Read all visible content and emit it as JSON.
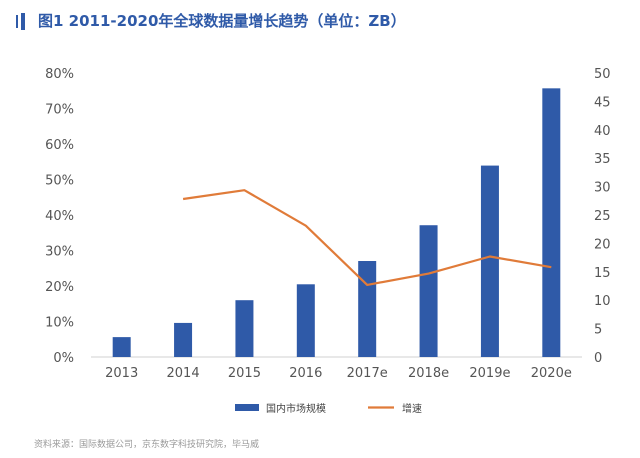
{
  "header": {
    "title": "图1  2011-2020年全球数据量增长趋势（单位：ZB）"
  },
  "footer": {
    "source": "资料来源：国际数据公司，京东数字科技研究院，毕马威"
  },
  "chart_data": {
    "type": "bar",
    "categories": [
      "2013",
      "2014",
      "2015",
      "2016",
      "2017e",
      "2018e",
      "2019e",
      "2020e"
    ],
    "series": [
      {
        "name": "国内市场规模",
        "type": "bar",
        "axis": "right",
        "color": "#2f5aa8",
        "values": [
          3.5,
          6.0,
          10.0,
          12.8,
          16.9,
          23.2,
          33.7,
          47.3
        ]
      },
      {
        "name": "增速",
        "type": "line",
        "axis": "left",
        "color": "#e07b39",
        "values": [
          null,
          44.5,
          47.0,
          37.0,
          20.3,
          23.5,
          28.3,
          25.3
        ]
      }
    ],
    "left_axis": {
      "ylim": [
        0,
        80
      ],
      "ticks": [
        "0%",
        "10%",
        "20%",
        "30%",
        "40%",
        "50%",
        "60%",
        "70%",
        "80%"
      ]
    },
    "right_axis": {
      "ylim": [
        0,
        50
      ],
      "ticks": [
        "0",
        "5",
        "10",
        "15",
        "20",
        "25",
        "30",
        "35",
        "40",
        "45",
        "50"
      ]
    },
    "legend": {
      "position": "bottom",
      "entries": [
        "国内市场规模",
        "增速"
      ]
    },
    "grid": false
  }
}
